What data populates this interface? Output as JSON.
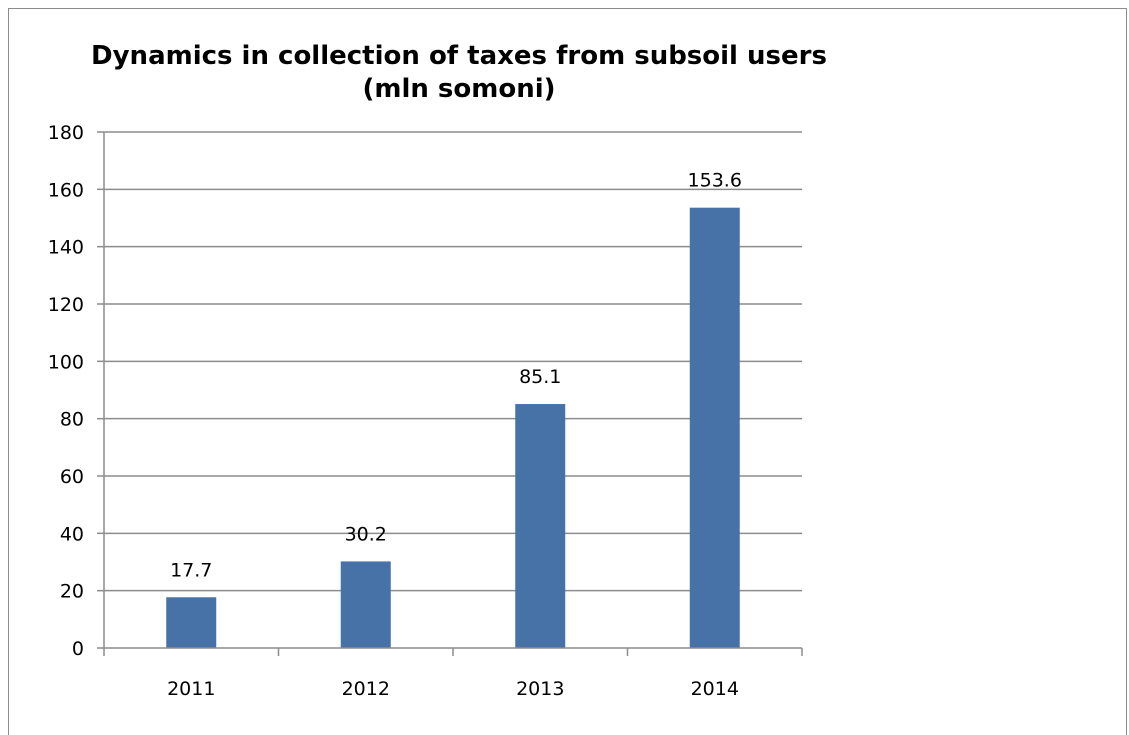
{
  "chart_data": {
    "type": "bar",
    "title": "Dynamics in collection of taxes from subsoil users",
    "subtitle": "(mln somoni)",
    "categories": [
      "2011",
      "2012",
      "2013",
      "2014"
    ],
    "values": [
      17.7,
      30.2,
      85.1,
      153.6
    ],
    "data_labels": [
      "17.7",
      "30.2",
      "85.1",
      "153.6"
    ],
    "ylim": [
      0,
      180
    ],
    "yticks": [
      0,
      20,
      40,
      60,
      80,
      100,
      120,
      140,
      160,
      180
    ],
    "grid": true,
    "legend": false,
    "bar_color": "#4672a8"
  }
}
